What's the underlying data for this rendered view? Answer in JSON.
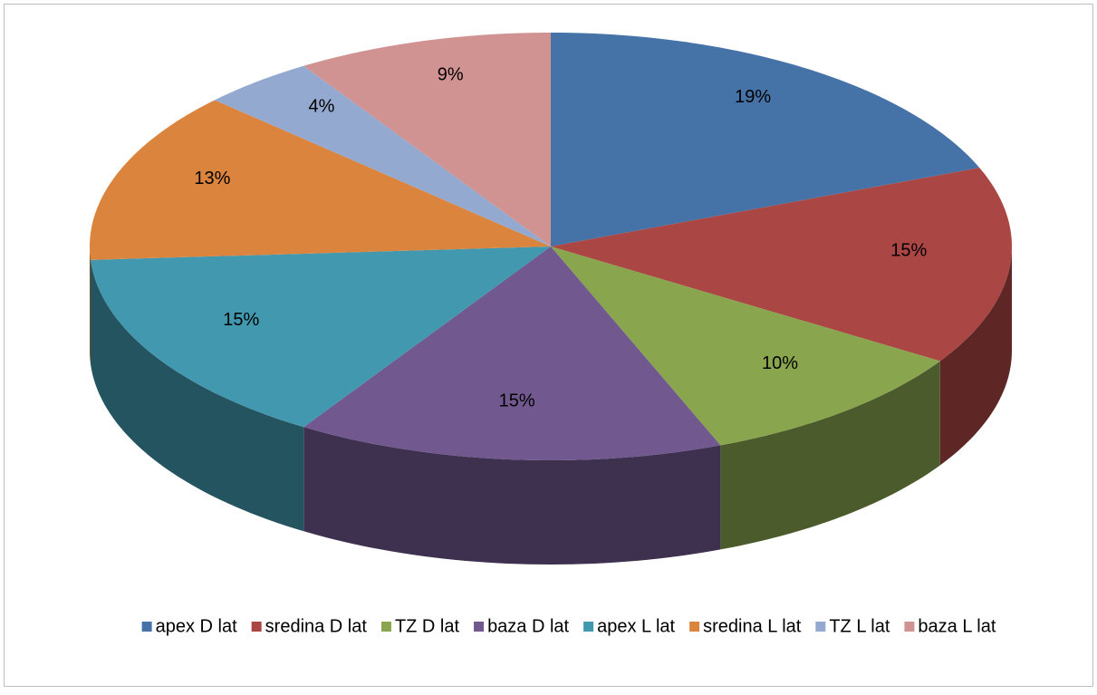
{
  "chart_data": {
    "type": "pie3d",
    "categories": [
      "apex D lat",
      "sredina D lat",
      "TZ D lat",
      "baza D lat",
      "apex L lat",
      "sredina L lat",
      "TZ L lat",
      "baza L lat"
    ],
    "values": [
      19,
      15,
      10,
      15,
      15,
      13,
      4,
      9
    ],
    "value_labels": [
      "19%",
      "15%",
      "10%",
      "15%",
      "15%",
      "13%",
      "4%",
      "9%"
    ],
    "colors": [
      "#4572A7",
      "#AA4643",
      "#89A54E",
      "#71588F",
      "#4198AF",
      "#DB843D",
      "#93A9CF",
      "#D19392"
    ],
    "legend": "bottom"
  }
}
